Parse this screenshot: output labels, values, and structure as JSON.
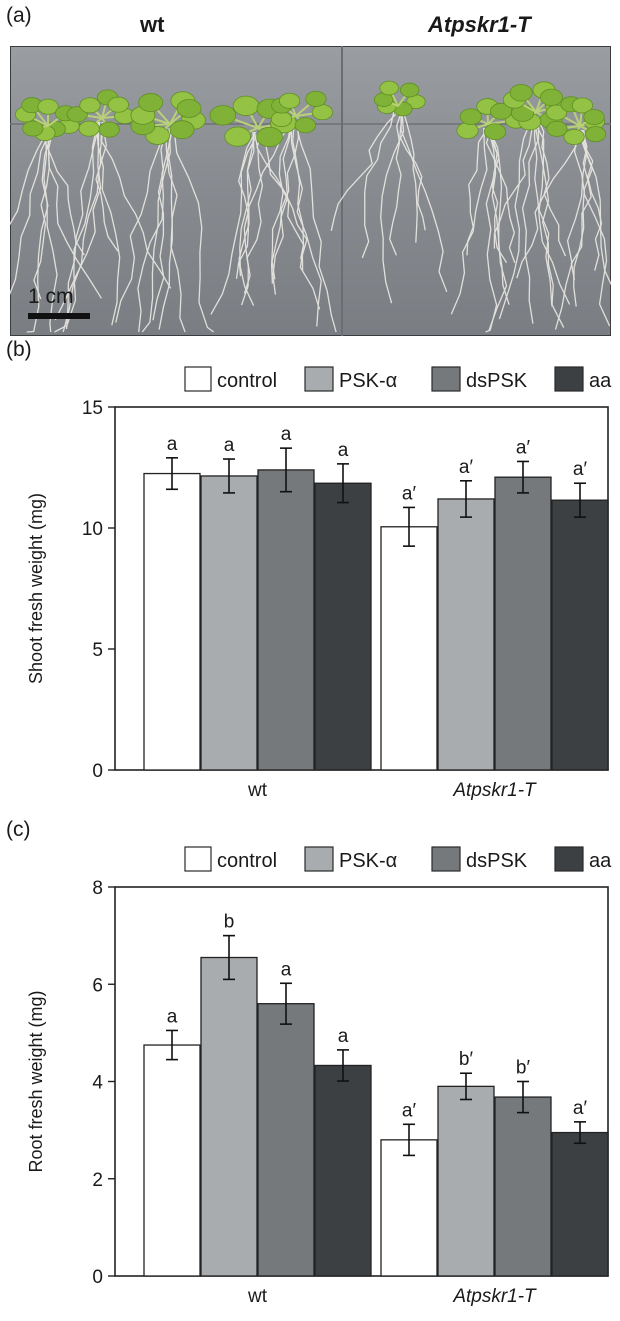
{
  "panels": {
    "a": {
      "letter": "(a)",
      "genotype_labels": [
        "wt",
        "Atpskr1-T"
      ],
      "scale_bar_label": "1 cm"
    }
  },
  "chart_data": [
    {
      "panel_letter": "(b)",
      "type": "bar",
      "categories": [
        "wt",
        "Atpskr1-T"
      ],
      "series": [
        {
          "name": "control",
          "color": "#ffffff",
          "values": [
            12.25,
            10.05
          ],
          "errors": [
            0.65,
            0.8
          ],
          "letters": [
            "a",
            "a′"
          ]
        },
        {
          "name": "PSK-α",
          "color": "#a9acae",
          "values": [
            12.15,
            11.2
          ],
          "errors": [
            0.7,
            0.75
          ],
          "letters": [
            "a",
            "a′"
          ]
        },
        {
          "name": "dsPSK",
          "color": "#75797c",
          "values": [
            12.4,
            12.1
          ],
          "errors": [
            0.9,
            0.65
          ],
          "letters": [
            "a",
            "a′"
          ]
        },
        {
          "name": "aa",
          "color": "#3c4043",
          "values": [
            11.85,
            11.15
          ],
          "errors": [
            0.8,
            0.7
          ],
          "letters": [
            "a",
            "a′"
          ]
        }
      ],
      "ylabel": "Shoot fresh weight (mg)",
      "ylim": [
        0,
        15
      ],
      "yticks": [
        0,
        5,
        10,
        15
      ],
      "legend": "top"
    },
    {
      "panel_letter": "(c)",
      "type": "bar",
      "categories": [
        "wt",
        "Atpskr1-T"
      ],
      "series": [
        {
          "name": "control",
          "color": "#ffffff",
          "values": [
            4.75,
            2.8
          ],
          "errors": [
            0.3,
            0.32
          ],
          "letters": [
            "a",
            "a′"
          ]
        },
        {
          "name": "PSK-α",
          "color": "#a9acae",
          "values": [
            6.55,
            3.9
          ],
          "errors": [
            0.45,
            0.27
          ],
          "letters": [
            "b",
            "b′"
          ]
        },
        {
          "name": "dsPSK",
          "color": "#75797c",
          "values": [
            5.6,
            3.68
          ],
          "errors": [
            0.42,
            0.32
          ],
          "letters": [
            "a",
            "b′"
          ]
        },
        {
          "name": "aa",
          "color": "#3c4043",
          "values": [
            4.33,
            2.95
          ],
          "errors": [
            0.32,
            0.22
          ],
          "letters": [
            "a",
            "a′"
          ]
        }
      ],
      "ylabel": "Root fresh weight (mg)",
      "ylim": [
        0,
        8
      ],
      "yticks": [
        0,
        2,
        4,
        6,
        8
      ],
      "legend": "top"
    }
  ]
}
